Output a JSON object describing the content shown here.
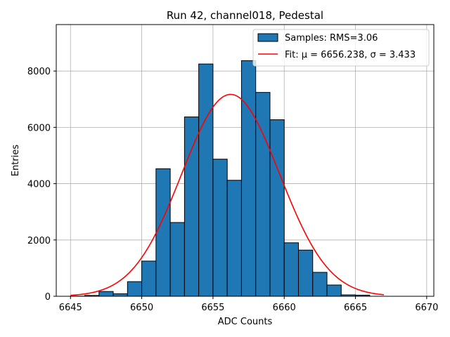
{
  "chart_data": {
    "type": "bar",
    "title": "Run 42, channel018, Pedestal",
    "xlabel": "ADC Counts",
    "ylabel": "Entries",
    "xlim": [
      6644,
      6670.5
    ],
    "ylim": [
      0,
      9650
    ],
    "xticks": [
      6645,
      6650,
      6655,
      6660,
      6665,
      6670
    ],
    "yticks": [
      0,
      2000,
      4000,
      6000,
      8000
    ],
    "grid": true,
    "legend_position": "top-right",
    "bin_width": 1,
    "bins": [
      {
        "x": 6645,
        "count": 5
      },
      {
        "x": 6646,
        "count": 30
      },
      {
        "x": 6647,
        "count": 170
      },
      {
        "x": 6648,
        "count": 90
      },
      {
        "x": 6649,
        "count": 520
      },
      {
        "x": 6650,
        "count": 1250
      },
      {
        "x": 6651,
        "count": 4530
      },
      {
        "x": 6652,
        "count": 2620
      },
      {
        "x": 6653,
        "count": 6370
      },
      {
        "x": 6654,
        "count": 8250
      },
      {
        "x": 6655,
        "count": 4870
      },
      {
        "x": 6656,
        "count": 4120
      },
      {
        "x": 6657,
        "count": 8370
      },
      {
        "x": 6658,
        "count": 7240
      },
      {
        "x": 6659,
        "count": 6270
      },
      {
        "x": 6660,
        "count": 1900
      },
      {
        "x": 6661,
        "count": 1640
      },
      {
        "x": 6662,
        "count": 850
      },
      {
        "x": 6663,
        "count": 400
      },
      {
        "x": 6664,
        "count": 50
      },
      {
        "x": 6665,
        "count": 40
      }
    ],
    "fit": {
      "mu": 6656.238,
      "sigma": 3.433,
      "amplitude": 7170,
      "x_range": [
        6645,
        6667
      ]
    },
    "legend": [
      {
        "label": "Samples: RMS=3.06",
        "kind": "patch"
      },
      {
        "label": "Fit: μ = 6656.238, σ = 3.433",
        "kind": "line"
      }
    ],
    "colors": {
      "bar_fill": "#1f77b4",
      "bar_edge": "#000000",
      "fit_line": "#ff0000",
      "grid": "#b0b0b0"
    }
  }
}
